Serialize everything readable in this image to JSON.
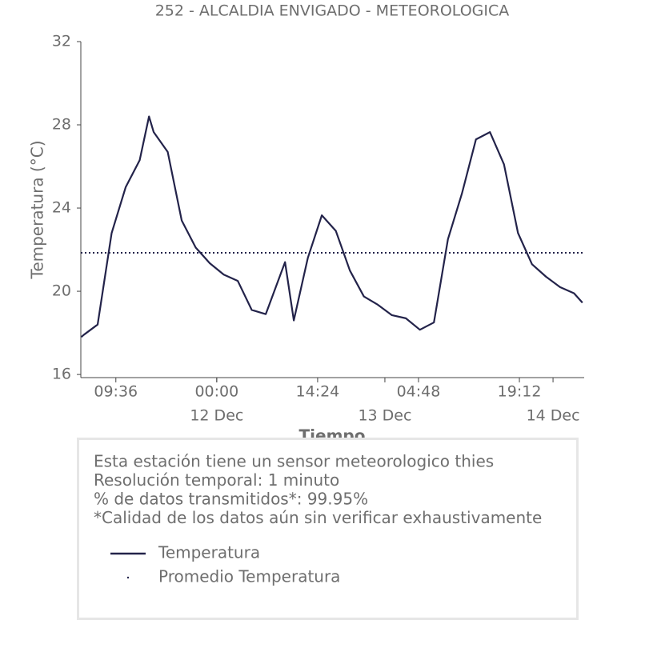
{
  "chart_data": {
    "type": "line",
    "title": "252 - ALCALDIA ENVIGADO - METEOROLOGICA",
    "y_label": "Temperatura (°C)",
    "x_label": "Tiempo",
    "x": [
      "11 Dec 04:40",
      "11 Dec 05:00",
      "11 Dec 07:00",
      "11 Dec 09:00",
      "11 Dec 11:00",
      "11 Dec 13:00",
      "11 Dec 14:20",
      "11 Dec 15:00",
      "11 Dec 17:00",
      "11 Dec 19:00",
      "11 Dec 21:00",
      "11 Dec 23:00",
      "12 Dec 01:00",
      "12 Dec 03:00",
      "12 Dec 05:00",
      "12 Dec 07:00",
      "12 Dec 09:45",
      "12 Dec 11:00",
      "12 Dec 13:00",
      "12 Dec 15:00",
      "12 Dec 17:00",
      "12 Dec 19:00",
      "12 Dec 21:00",
      "12 Dec 23:00",
      "13 Dec 01:00",
      "13 Dec 03:00",
      "13 Dec 05:00",
      "13 Dec 07:00",
      "13 Dec 09:00",
      "13 Dec 11:00",
      "13 Dec 13:00",
      "13 Dec 15:00",
      "13 Dec 17:00",
      "13 Dec 19:00",
      "13 Dec 21:00",
      "13 Dec 23:00",
      "14 Dec 01:00",
      "14 Dec 03:00",
      "14 Dec 04:12"
    ],
    "series": [
      {
        "name": "Temperatura",
        "color": "#23234a",
        "values": [
          17.8,
          17.9,
          18.4,
          22.8,
          25.0,
          26.3,
          28.4,
          27.65,
          26.7,
          23.4,
          22.1,
          21.35,
          20.8,
          20.5,
          19.1,
          18.9,
          21.4,
          18.6,
          21.6,
          23.65,
          22.9,
          21.0,
          19.75,
          19.35,
          18.85,
          18.7,
          18.15,
          18.5,
          22.5,
          24.7,
          27.3,
          27.65,
          26.1,
          22.8,
          21.3,
          20.7,
          20.2,
          19.9,
          19.45
        ]
      }
    ],
    "reference_line": {
      "name": "Promedio Temperatura",
      "value": 21.85,
      "color": "#23234a",
      "style": "dotted"
    },
    "xlim": [
      "11 Dec 04:36",
      "14 Dec 04:20"
    ],
    "xticks": [
      {
        "value": "11 Dec 09:36",
        "label": "09:36"
      },
      {
        "value": "12 Dec 00:00",
        "label": "00:00"
      },
      {
        "value": "12 Dec 14:24",
        "label": "14:24"
      },
      {
        "value": "13 Dec 04:48",
        "label": "04:48"
      },
      {
        "value": "13 Dec 19:12",
        "label": "19:12"
      }
    ],
    "x_date_ticks": [
      {
        "value": "12 Dec 00:00",
        "label": "12 Dec"
      },
      {
        "value": "13 Dec 00:00",
        "label": "13 Dec"
      },
      {
        "value": "14 Dec 00:00",
        "label": "14 Dec"
      }
    ],
    "ylim": [
      15.85,
      32
    ],
    "yticks": [
      16,
      20,
      24,
      28,
      32
    ],
    "info": [
      "Esta estación tiene un sensor meteorologico thies",
      "Resolución temporal: 1 minuto",
      "% de datos transmitidos*: 99.95%",
      "*Calidad de los datos aún sin verificar exhaustivamente"
    ]
  }
}
